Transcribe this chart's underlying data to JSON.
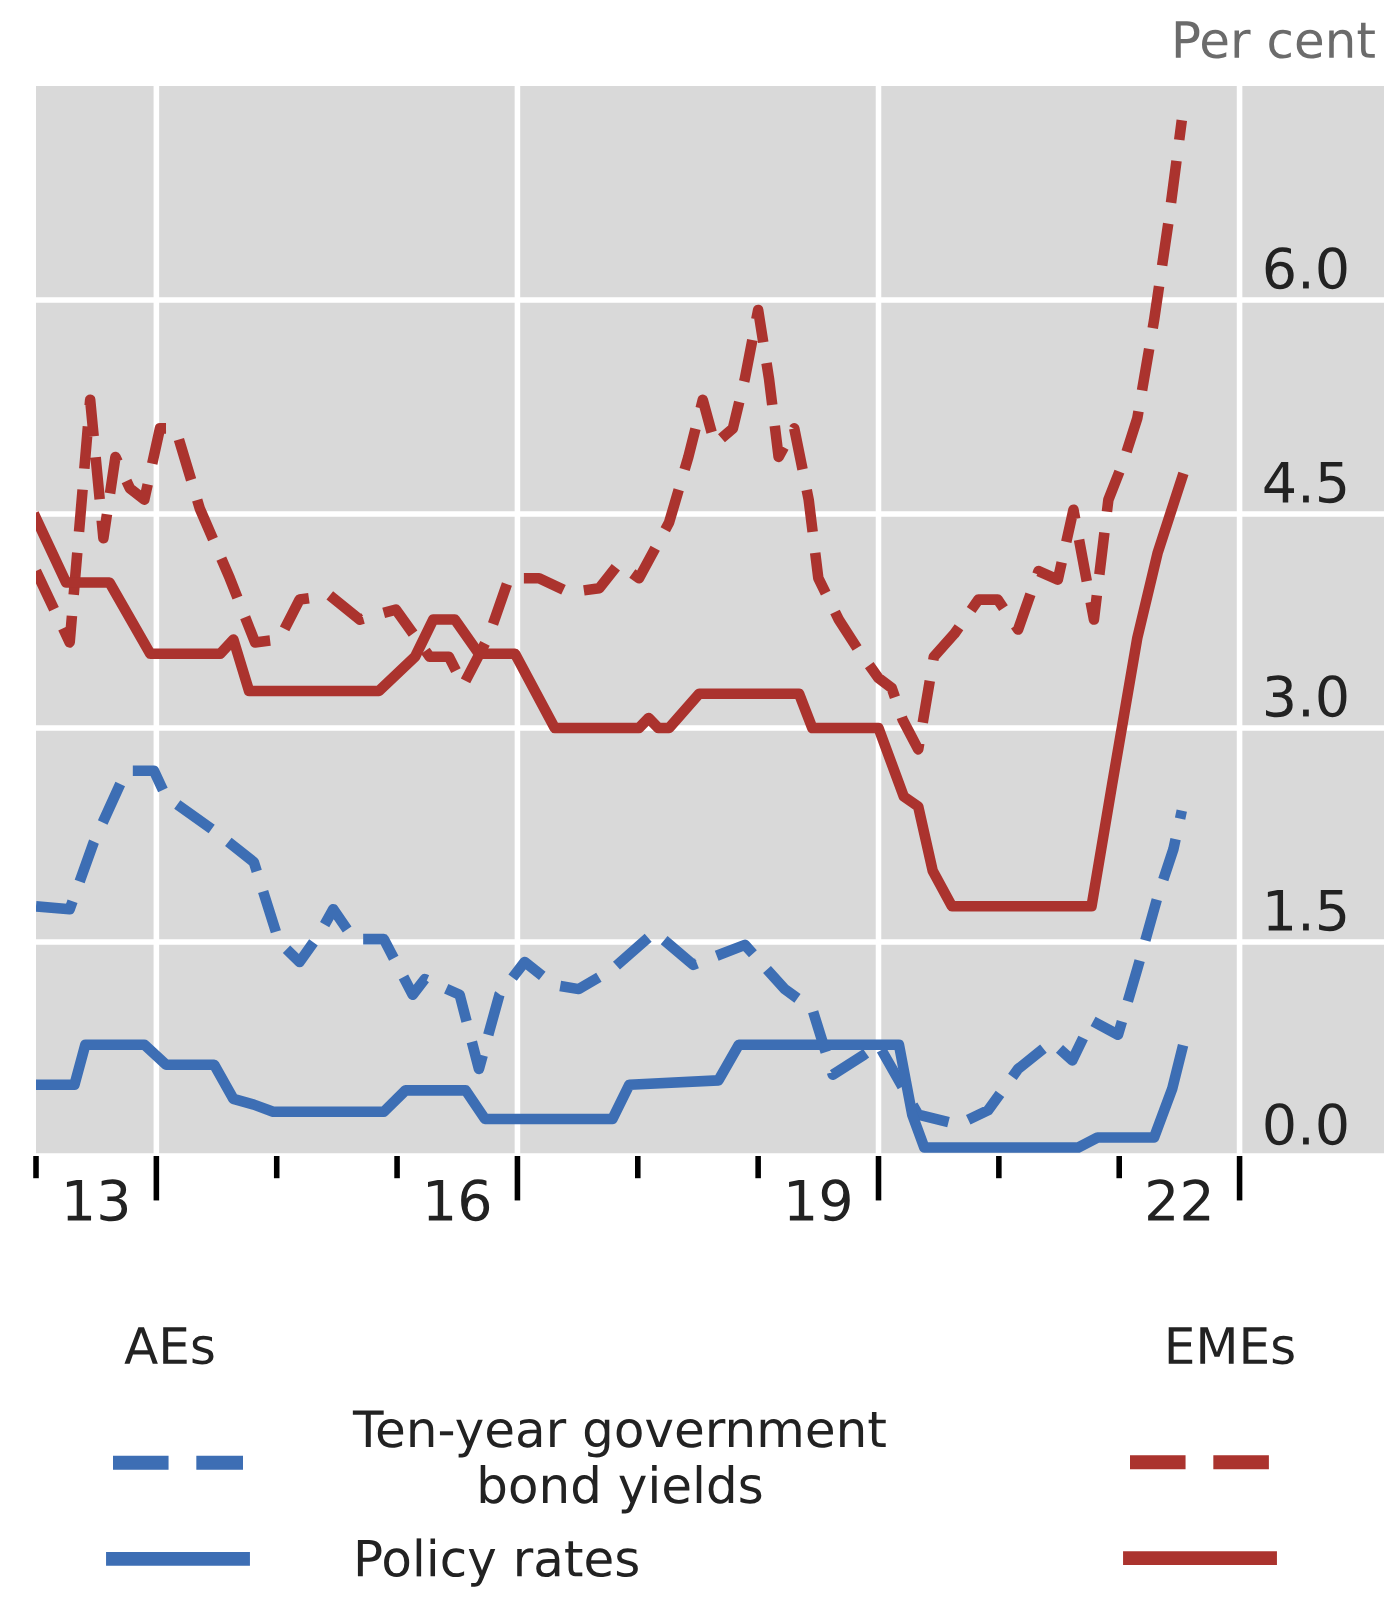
{
  "chart_data": {
    "type": "line",
    "ylabel": "Per cent",
    "annotations": [
      "AEs",
      "EMEs"
    ],
    "xlim": [
      12.5,
      23.7
    ],
    "ylim": [
      0,
      7.5
    ],
    "xticks": [
      {
        "value": 12.5,
        "label": null
      },
      13,
      {
        "value": 13.5,
        "label": null
      },
      {
        "value": 14.5,
        "label": null
      },
      {
        "value": 15.5,
        "label": null
      },
      16,
      {
        "value": 16.5,
        "label": null
      },
      {
        "value": 17.5,
        "label": null
      },
      {
        "value": 18.5,
        "label": null
      },
      19,
      {
        "value": 19.5,
        "label": null
      },
      {
        "value": 20.5,
        "label": null
      },
      {
        "value": 21.5,
        "label": null
      },
      22,
      {
        "value": 22.5,
        "label": null
      }
    ],
    "yticks": [
      {
        "value": 0,
        "label": "0.0"
      },
      {
        "value": 1.5,
        "label": "1.5"
      },
      {
        "value": 3,
        "label": "3.0"
      },
      {
        "value": 4.5,
        "label": "4.5"
      },
      {
        "value": 6,
        "label": "6.0"
      }
    ],
    "grid": true,
    "legend": "bottom",
    "series": [
      {
        "name": "Ten-year government\nbond yields",
        "color": "#3d6eb4",
        "line_style": "dashed",
        "x": [
          12.5,
          12.78,
          12.98,
          13.25,
          13.48,
          13.58,
          13.98,
          14.31,
          14.52,
          14.69,
          14.85,
          14.97,
          15.14,
          15.39,
          15.63,
          15.73,
          16.02,
          16.18,
          16.35,
          16.56,
          16.8,
          17.01,
          17.29,
          17.64,
          17.96,
          18.39,
          18.72,
          18.95,
          19.12,
          19.38,
          19.5,
          19.83,
          20.16,
          20.41,
          20.66,
          20.94,
          21.11,
          21.27,
          21.49,
          21.65,
          21.82,
          21.95,
          22.02
        ],
        "values": [
          1.75,
          1.73,
          2.2,
          2.7,
          2.7,
          2.52,
          2.28,
          2.06,
          1.5,
          1.36,
          1.55,
          1.73,
          1.52,
          1.52,
          1.13,
          1.24,
          1.13,
          0.61,
          1.13,
          1.36,
          1.2,
          1.17,
          1.31,
          1.57,
          1.34,
          1.48,
          1.17,
          1.03,
          0.57,
          0.71,
          0.78,
          0.29,
          0.22,
          0.32,
          0.61,
          0.8,
          0.67,
          0.95,
          0.85,
          1.31,
          1.82,
          2.15,
          2.42
        ]
      },
      {
        "color": "#ab332e",
        "line_style": "dashed",
        "x": [
          12.5,
          12.78,
          12.95,
          13.06,
          13.16,
          13.28,
          13.4,
          13.53,
          13.66,
          13.86,
          14.11,
          14.32,
          14.52,
          14.69,
          14.94,
          15.19,
          15.49,
          15.77,
          15.93,
          16.05,
          16.26,
          16.43,
          16.68,
          16.93,
          17.18,
          17.34,
          17.51,
          17.76,
          17.92,
          18.04,
          18.14,
          18.29,
          18.39,
          18.5,
          18.59,
          18.67,
          18.8,
          18.92,
          19.0,
          19.17,
          19.33,
          19.5,
          19.61,
          19.7,
          19.83,
          19.96,
          20.13,
          20.33,
          20.49,
          20.66,
          20.83,
          20.99,
          21.12,
          21.29,
          21.41,
          21.54,
          21.65,
          21.79,
          21.91,
          22.02
        ],
        "values": [
          4.1,
          3.6,
          5.3,
          4.33,
          4.9,
          4.68,
          4.6,
          5.1,
          5.1,
          4.54,
          4.05,
          3.6,
          3.62,
          3.9,
          3.93,
          3.76,
          3.83,
          3.5,
          3.5,
          3.3,
          3.64,
          4.05,
          4.05,
          3.95,
          3.98,
          4.15,
          4.05,
          4.44,
          4.9,
          5.3,
          4.99,
          5.1,
          5.45,
          5.93,
          5.45,
          4.9,
          5.1,
          4.6,
          4.05,
          3.76,
          3.55,
          3.35,
          3.28,
          3.06,
          2.85,
          3.5,
          3.66,
          3.9,
          3.9,
          3.69,
          4.1,
          4.04,
          4.53,
          3.76,
          4.6,
          4.88,
          5.17,
          5.86,
          6.55,
          7.26
        ]
      },
      {
        "name": "Policy rates",
        "color": "#3d6eb4",
        "line_style": "solid",
        "x": [
          12.5,
          12.82,
          12.91,
          13.4,
          13.58,
          13.98,
          14.14,
          14.31,
          14.47,
          15.39,
          15.57,
          16.07,
          16.23,
          17.29,
          17.43,
          18.17,
          18.34,
          19.67,
          19.78,
          19.88,
          21.16,
          21.32,
          21.79,
          21.94,
          22.02
        ],
        "values": [
          0.5,
          0.5,
          0.78,
          0.78,
          0.64,
          0.64,
          0.4,
          0.36,
          0.31,
          0.31,
          0.46,
          0.46,
          0.26,
          0.26,
          0.5,
          0.53,
          0.78,
          0.78,
          0.29,
          0.06,
          0.06,
          0.13,
          0.13,
          0.47,
          0.74
        ]
      },
      {
        "color": "#ab332e",
        "line_style": "solid",
        "x": [
          12.5,
          12.75,
          13.11,
          13.45,
          14.03,
          14.14,
          14.27,
          15.35,
          15.65,
          15.8,
          15.98,
          16.18,
          16.48,
          16.81,
          17.51,
          17.59,
          17.67,
          17.76,
          18.01,
          18.84,
          18.95,
          19.5,
          19.71,
          19.83,
          19.95,
          20.11,
          21.27,
          21.44,
          21.65,
          21.82,
          22.02
        ],
        "values": [
          4.47,
          4.02,
          4.02,
          3.52,
          3.52,
          3.62,
          3.26,
          3.26,
          3.5,
          3.76,
          3.76,
          3.52,
          3.52,
          3.0,
          3.0,
          3.07,
          3.0,
          3.0,
          3.24,
          3.24,
          3.0,
          3.0,
          2.52,
          2.45,
          2.0,
          1.75,
          1.75,
          2.6,
          3.63,
          4.23,
          4.75
        ]
      }
    ]
  }
}
